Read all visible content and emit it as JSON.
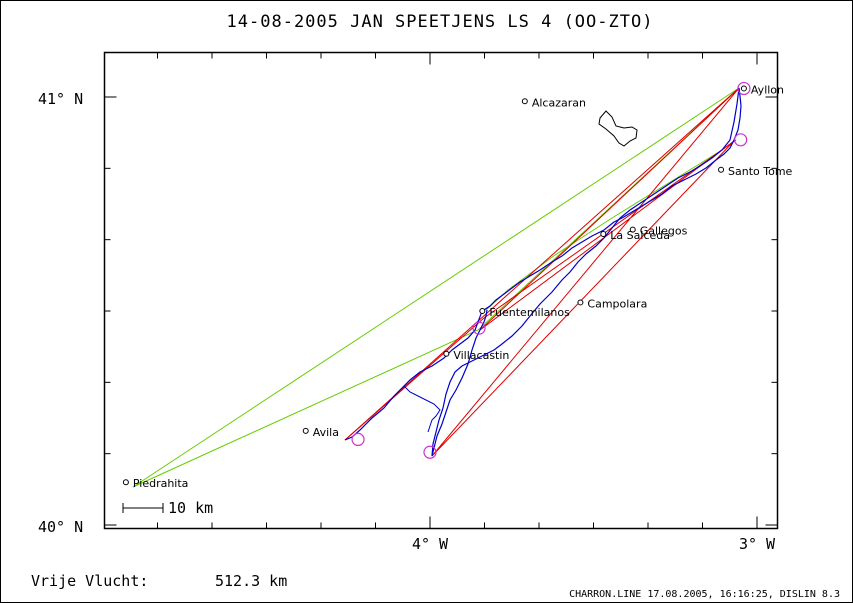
{
  "title": "14-08-2005    JAN SPEETJENS    LS 4 (OO-ZTO)",
  "axes": {
    "y_ticks": [
      "41° N",
      "40° N"
    ],
    "x_ticks": [
      "4° W",
      "3° W"
    ]
  },
  "scale_bar": {
    "label": "10 km",
    "km": 10
  },
  "towns": [
    {
      "name": "Alcazaran",
      "lon": -3.71,
      "lat": 40.99
    },
    {
      "name": "Ayllon",
      "lon": -3.04,
      "lat": 41.02
    },
    {
      "name": "Santo Tome",
      "lon": -3.11,
      "lat": 40.83
    },
    {
      "name": "Gallegos",
      "lon": -3.38,
      "lat": 40.69
    },
    {
      "name": "La Salceda",
      "lon": -3.47,
      "lat": 40.68
    },
    {
      "name": "Campolara",
      "lon": -3.54,
      "lat": 40.52
    },
    {
      "name": "Fuentemilanos",
      "lon": -3.84,
      "lat": 40.5
    },
    {
      "name": "Villacastin",
      "lon": -3.95,
      "lat": 40.4
    },
    {
      "name": "Avila",
      "lon": -4.38,
      "lat": 40.22
    },
    {
      "name": "Piedrahita",
      "lon": -4.93,
      "lat": 40.1
    }
  ],
  "turnpoints": [
    {
      "lon": -3.04,
      "lat": 41.02
    },
    {
      "lon": -3.05,
      "lat": 40.9
    },
    {
      "lon": -3.85,
      "lat": 40.46
    },
    {
      "lon": -4.0,
      "lat": 40.17
    },
    {
      "lon": -4.22,
      "lat": 40.2
    }
  ],
  "footer": {
    "distance_label": "Vrije Vlucht:",
    "distance_value": "512.3 km",
    "credit": "CHARRON.LINE 17.08.2005, 16:16:25, DISLIN 8.3"
  },
  "colors": {
    "track": "#0000cc",
    "task": "#e00000",
    "free_flight": "#66cc00",
    "turnpoint": "#cc33cc",
    "frame": "#000000"
  }
}
